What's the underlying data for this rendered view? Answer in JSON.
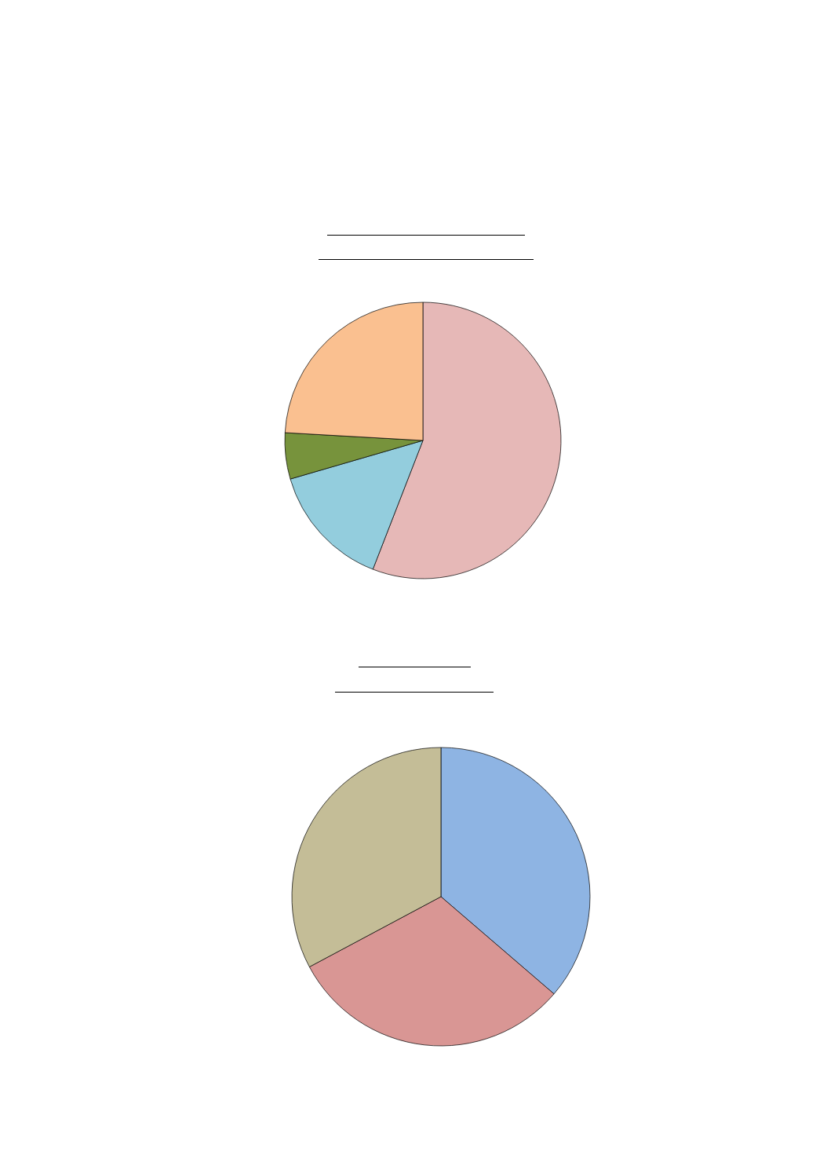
{
  "chart_data": [
    {
      "type": "pie",
      "categories": [
        null,
        null,
        null,
        null
      ],
      "values": [
        55.9,
        14.6,
        5.4,
        24.1
      ],
      "colors": [
        "#e6b8b7",
        "#93cddd",
        "#77933c",
        "#fac090"
      ]
    },
    {
      "type": "pie",
      "categories": [
        null,
        null,
        null
      ],
      "values": [
        36.3,
        30.9,
        32.8
      ],
      "colors": [
        "#8eb4e3",
        "#d99694",
        "#c4bd97"
      ]
    }
  ]
}
